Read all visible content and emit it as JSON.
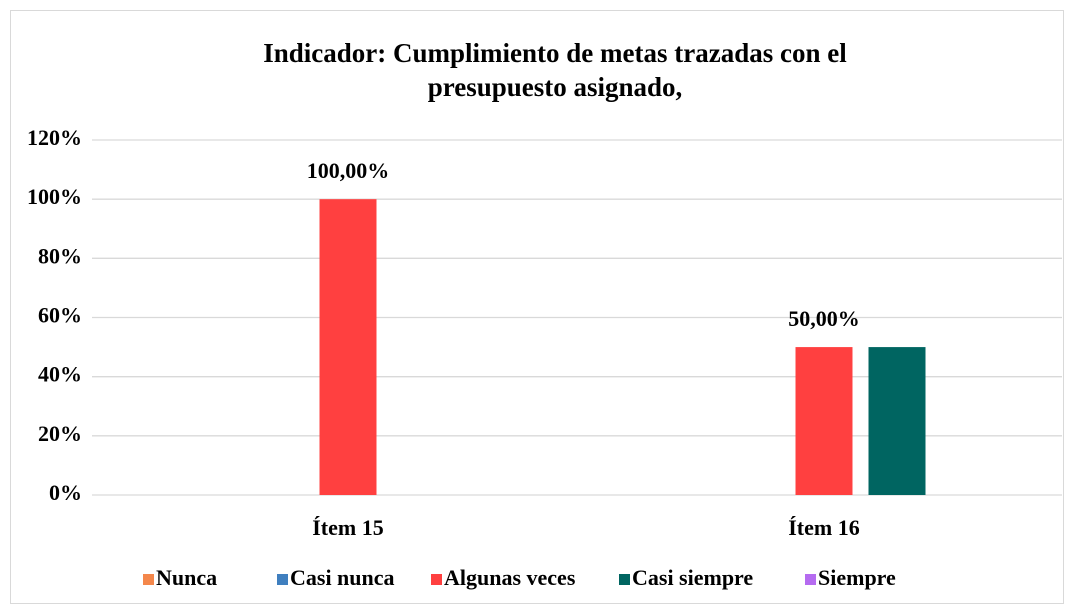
{
  "chart_data": {
    "type": "bar",
    "title": "Indicador: Cumplimiento de metas trazadas con el presupuesto asignado,",
    "categories": [
      "Ítem 15",
      "Ítem 16"
    ],
    "series": [
      {
        "name": "Nunca",
        "color": "#f4874b",
        "values": [
          0,
          0
        ]
      },
      {
        "name": "Casi nunca",
        "color": "#3f7fbf",
        "values": [
          0,
          0
        ]
      },
      {
        "name": "Algunas veces",
        "color": "#ff4040",
        "values": [
          100,
          50
        ],
        "value_labels": [
          "100,00%",
          "50,00%"
        ]
      },
      {
        "name": "Casi siempre",
        "color": "#006561",
        "values": [
          0,
          50
        ]
      },
      {
        "name": "Siempre",
        "color": "#b56bf0",
        "values": [
          0,
          0
        ]
      }
    ],
    "ylim": [
      0,
      120
    ],
    "yticks": [
      {
        "value": 0,
        "label": "0%"
      },
      {
        "value": 20,
        "label": "20%"
      },
      {
        "value": 40,
        "label": "40%"
      },
      {
        "value": 60,
        "label": "60%"
      },
      {
        "value": 80,
        "label": "80%"
      },
      {
        "value": 100,
        "label": "100%"
      },
      {
        "value": 120,
        "label": "120%"
      }
    ],
    "grid": true,
    "legend": "bottom"
  }
}
